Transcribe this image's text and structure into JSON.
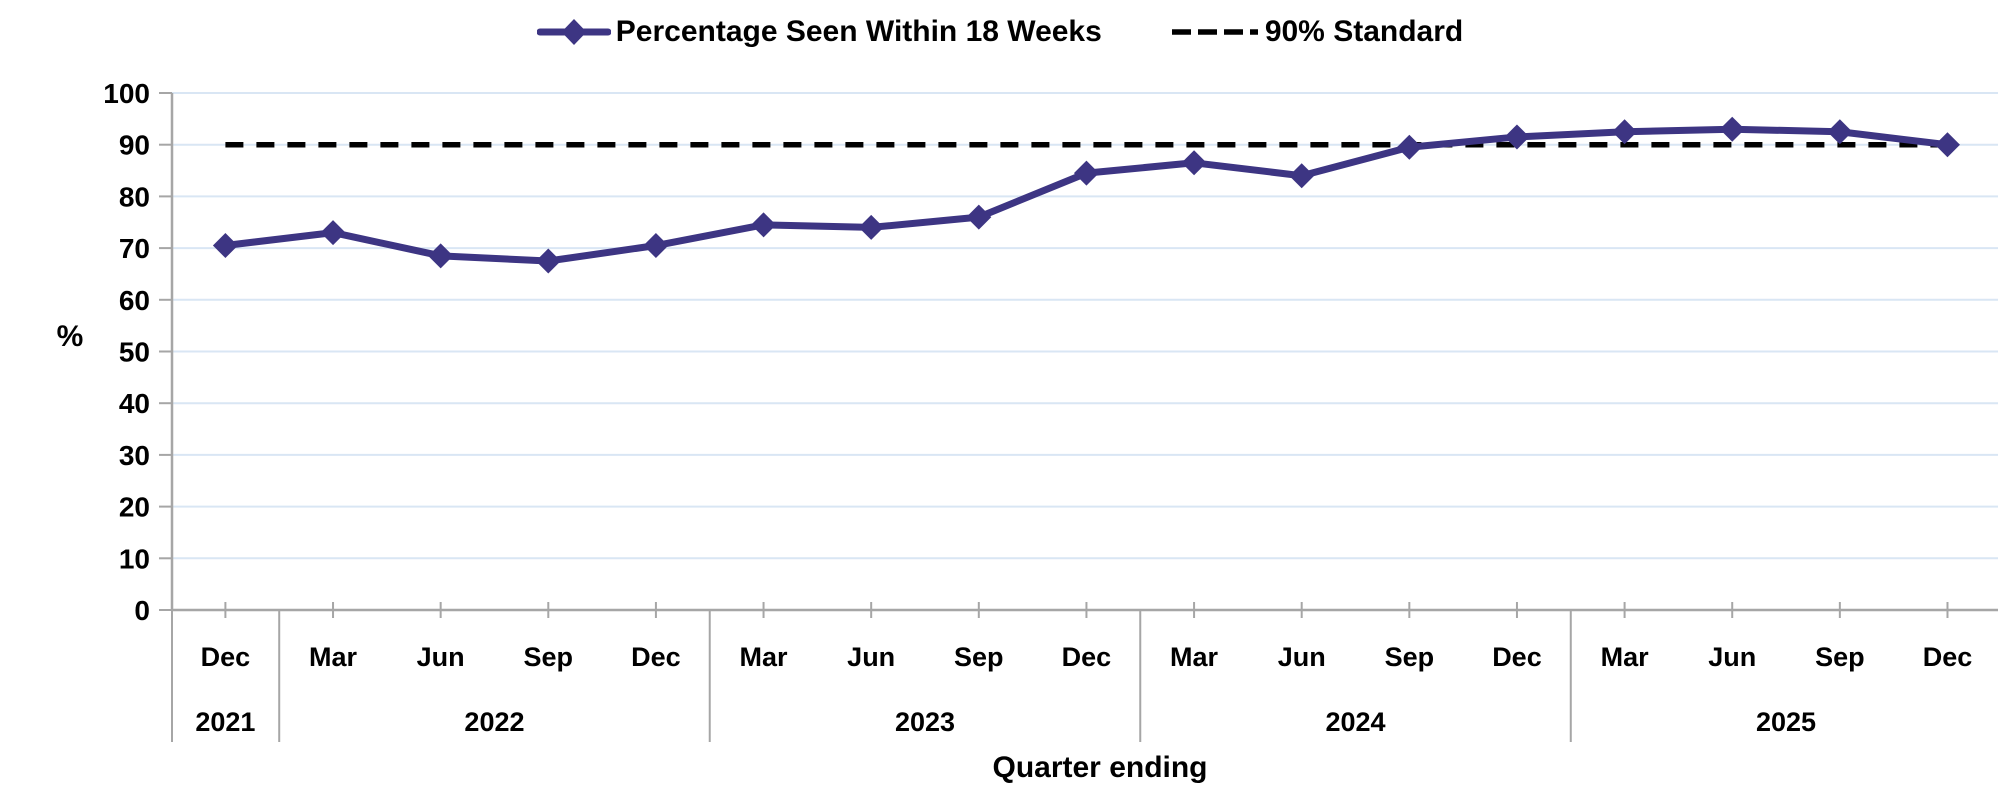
{
  "legend": {
    "series_label": "Percentage Seen Within 18 Weeks",
    "standard_label": "90% Standard"
  },
  "chart_data": {
    "type": "line",
    "title": "",
    "xlabel": "Quarter ending",
    "ylabel": "%",
    "ylim": [
      0,
      100
    ],
    "y_tick_step": 10,
    "grid": true,
    "legend_position": "top-center",
    "categories": [
      "Dec 2021",
      "Mar 2022",
      "Jun 2022",
      "Sep 2022",
      "Dec 2022",
      "Mar 2023",
      "Jun 2023",
      "Sep 2023",
      "Dec 2023",
      "Mar 2024",
      "Jun 2024",
      "Sep 2024",
      "Dec 2024",
      "Mar 2025",
      "Jun 2025",
      "Sep 2025",
      "Dec 2025"
    ],
    "month_labels": [
      "Dec",
      "Mar",
      "Jun",
      "Sep",
      "Dec",
      "Mar",
      "Jun",
      "Sep",
      "Dec",
      "Mar",
      "Jun",
      "Sep",
      "Dec",
      "Mar",
      "Jun",
      "Sep",
      "Dec"
    ],
    "year_groups": [
      {
        "label": "2021",
        "count": 1
      },
      {
        "label": "2022",
        "count": 4
      },
      {
        "label": "2023",
        "count": 4
      },
      {
        "label": "2024",
        "count": 4
      },
      {
        "label": "2025",
        "count": 4
      }
    ],
    "series": [
      {
        "name": "Percentage Seen Within 18 Weeks",
        "type": "line",
        "color": "#3D3583",
        "marker": "diamond",
        "values": [
          70.5,
          73,
          68.5,
          67.5,
          70.5,
          74.5,
          74,
          76,
          84.5,
          86.5,
          84,
          89.5,
          91.5,
          92.5,
          93,
          92.5,
          90
        ]
      },
      {
        "name": "90% Standard",
        "type": "reference-line",
        "color": "#000000",
        "style": "dashed",
        "value": 90
      }
    ]
  },
  "colors": {
    "series": "#3D3583",
    "standard": "#000000",
    "gridline": "#D9E6F4",
    "axis": "#A6A6A6",
    "text": "#000000",
    "background": "#FFFFFF"
  }
}
